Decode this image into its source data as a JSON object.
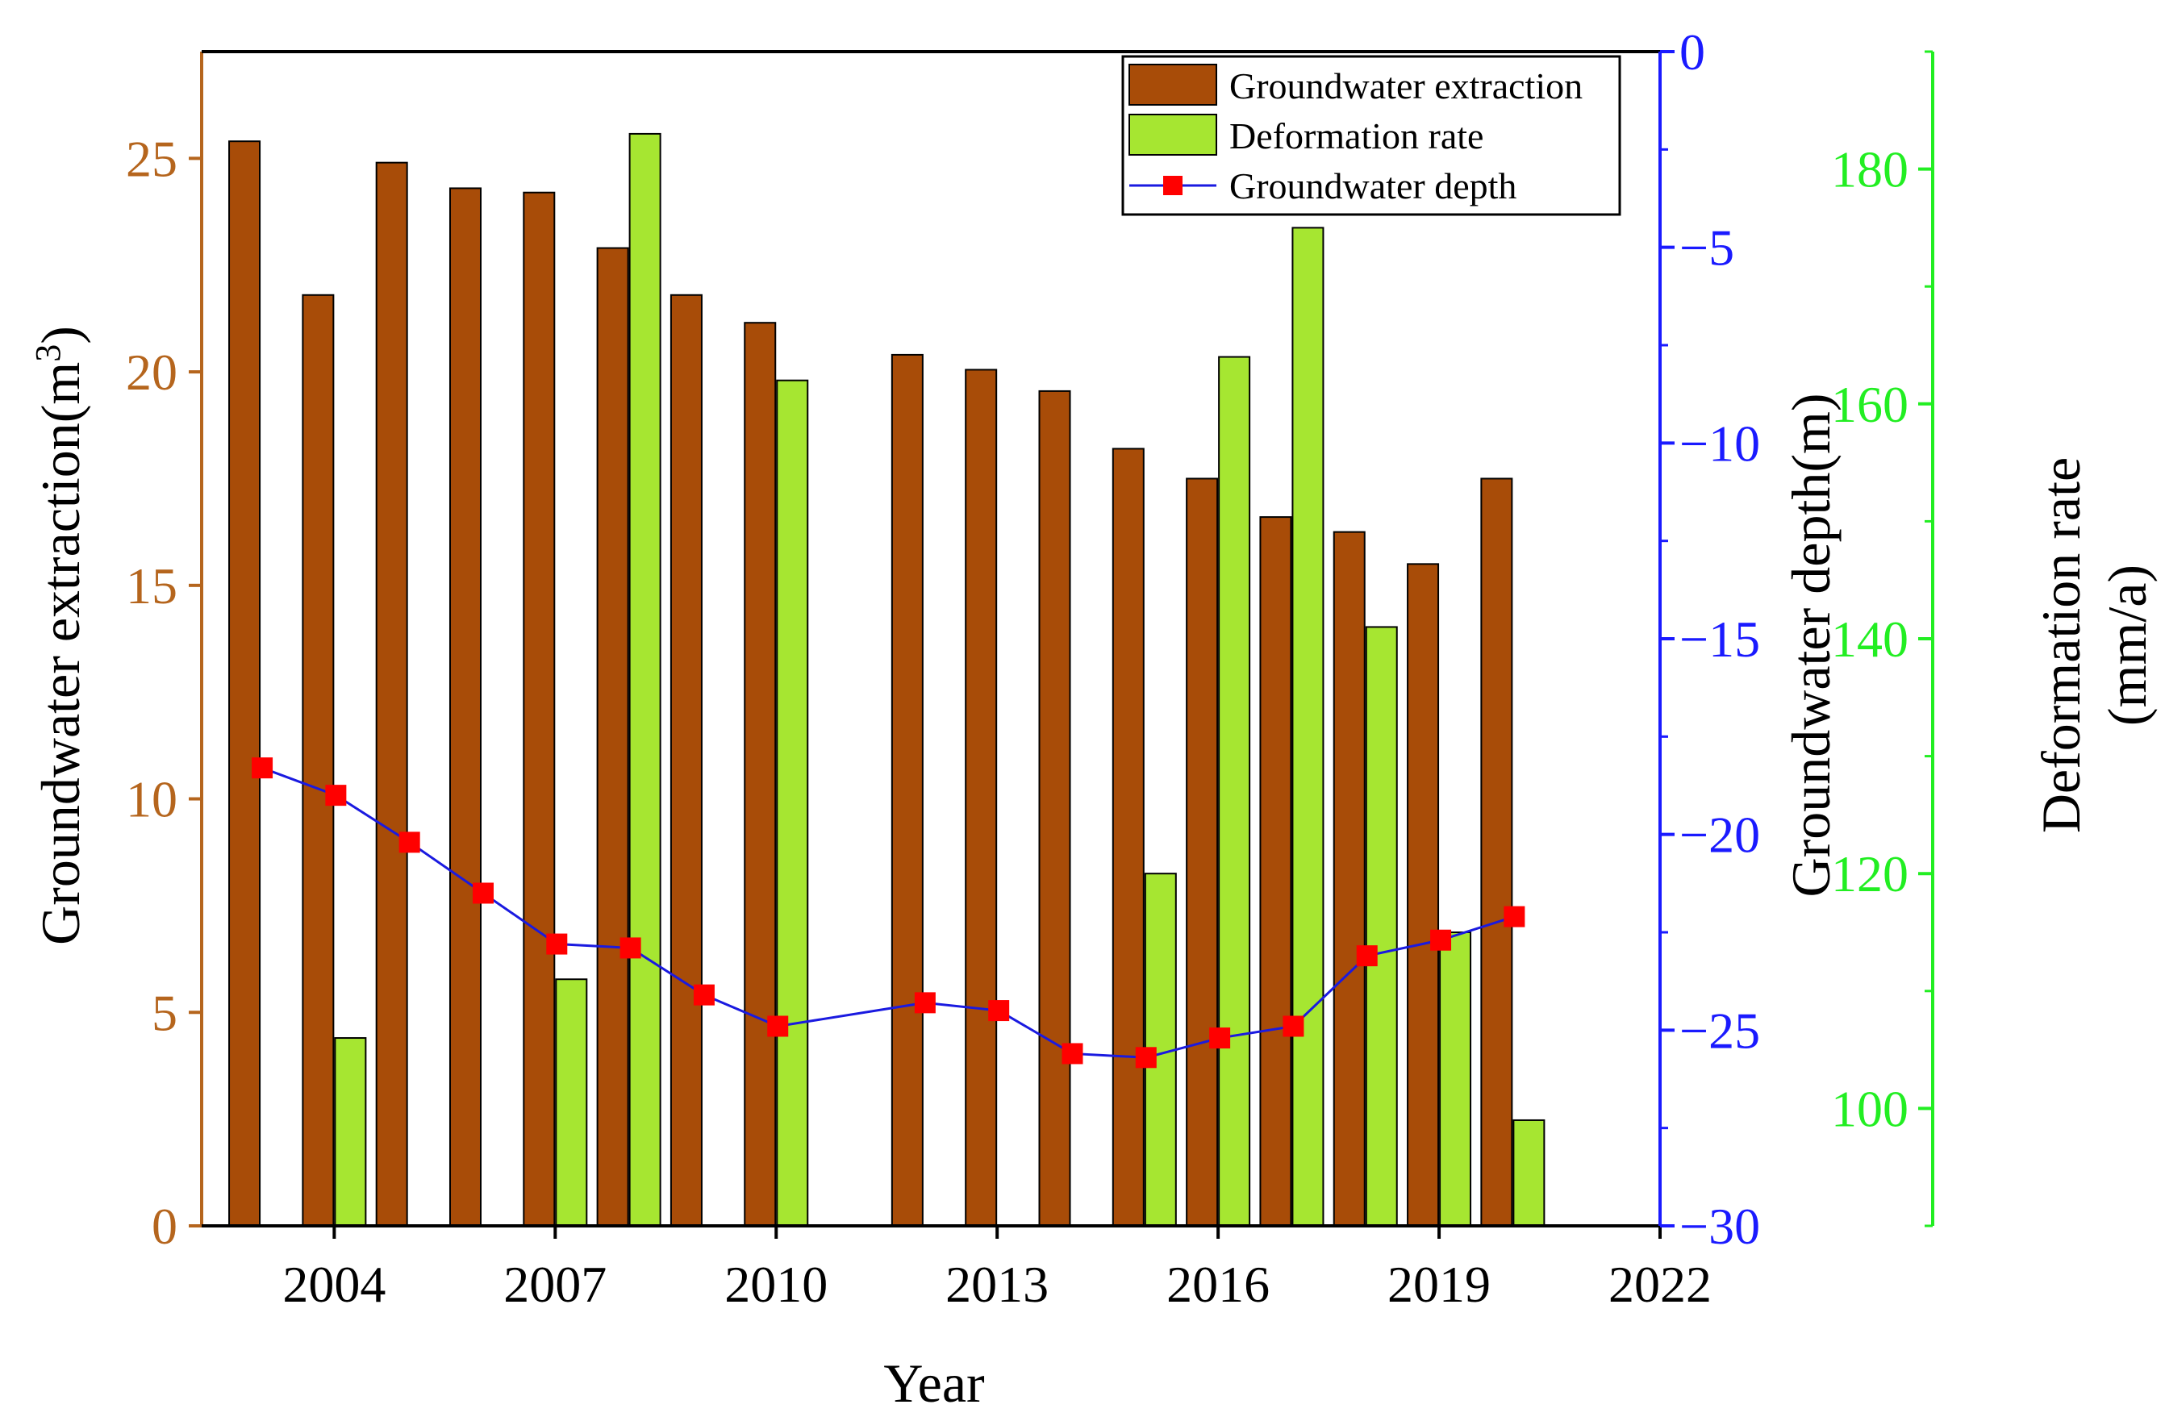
{
  "chart_data": {
    "type": "bar",
    "xlabel": "Year",
    "x_ticks": [
      "2004",
      "2007",
      "2010",
      "2013",
      "2016",
      "2019",
      "2022"
    ],
    "xlim": [
      2002.2,
      2022
    ],
    "axes": {
      "left": {
        "label": "Groundwater extraction(m",
        "label_superscript": "3",
        "label_suffix": ")",
        "ylim": [
          0,
          27.5
        ],
        "ticks": [
          "0",
          "5",
          "10",
          "15",
          "20",
          "25"
        ],
        "color": "#b5651d"
      },
      "right1": {
        "label": "Groundwater depth(m)",
        "ylim": [
          -30,
          0
        ],
        "ticks": [
          "0",
          "−5",
          "−10",
          "−15",
          "−20",
          "−25",
          "−30"
        ],
        "color": "#1a1aff"
      },
      "right2": {
        "label_line1": "Deformation rate",
        "label_line2": "(mm/a)",
        "ylim": [
          90,
          190
        ],
        "ticks": [
          "100",
          "120",
          "140",
          "160",
          "180"
        ],
        "color": "#22ee22"
      }
    },
    "legend": {
      "placement": "top-right",
      "items": [
        "Groundwater extraction",
        "Deformation rate",
        "Groundwater depth"
      ]
    },
    "colors": {
      "extraction": "#a84c08",
      "deformation": "#a6e631",
      "depth_line": "#1a1ae0",
      "depth_marker": "#ff0000"
    },
    "series": [
      {
        "name": "Groundwater extraction",
        "axis": "left",
        "points": [
          {
            "x": 2003,
            "y": 25.4
          },
          {
            "x": 2004,
            "y": 21.8
          },
          {
            "x": 2005,
            "y": 24.9
          },
          {
            "x": 2006,
            "y": 24.3
          },
          {
            "x": 2007,
            "y": 24.2
          },
          {
            "x": 2008,
            "y": 22.9
          },
          {
            "x": 2009,
            "y": 21.8
          },
          {
            "x": 2010,
            "y": 21.15
          },
          {
            "x": 2012,
            "y": 20.4
          },
          {
            "x": 2013,
            "y": 20.05
          },
          {
            "x": 2014,
            "y": 19.55
          },
          {
            "x": 2015,
            "y": 18.2
          },
          {
            "x": 2016,
            "y": 17.5
          },
          {
            "x": 2017,
            "y": 16.6
          },
          {
            "x": 2018,
            "y": 16.25
          },
          {
            "x": 2019,
            "y": 15.5
          },
          {
            "x": 2020,
            "y": 17.5
          }
        ]
      },
      {
        "name": "Deformation rate",
        "axis": "right2",
        "points": [
          {
            "x": 2004,
            "y": 106
          },
          {
            "x": 2007,
            "y": 111
          },
          {
            "x": 2008,
            "y": 183
          },
          {
            "x": 2010,
            "y": 162
          },
          {
            "x": 2015,
            "y": 120
          },
          {
            "x": 2016,
            "y": 164
          },
          {
            "x": 2017,
            "y": 175
          },
          {
            "x": 2018,
            "y": 141
          },
          {
            "x": 2019,
            "y": 115
          },
          {
            "x": 2020,
            "y": 99
          }
        ]
      },
      {
        "name": "Groundwater depth",
        "axis": "right1",
        "points": [
          {
            "x": 2003,
            "y": -18.3
          },
          {
            "x": 2004,
            "y": -19.0
          },
          {
            "x": 2005,
            "y": -20.2
          },
          {
            "x": 2006,
            "y": -21.5
          },
          {
            "x": 2007,
            "y": -22.8
          },
          {
            "x": 2008,
            "y": -22.9
          },
          {
            "x": 2009,
            "y": -24.1
          },
          {
            "x": 2010,
            "y": -24.9
          },
          {
            "x": 2012,
            "y": -24.3
          },
          {
            "x": 2013,
            "y": -24.5
          },
          {
            "x": 2014,
            "y": -25.6
          },
          {
            "x": 2015,
            "y": -25.7
          },
          {
            "x": 2016,
            "y": -25.2
          },
          {
            "x": 2017,
            "y": -24.9
          },
          {
            "x": 2018,
            "y": -23.1
          },
          {
            "x": 2019,
            "y": -22.7
          },
          {
            "x": 2020,
            "y": -22.1
          }
        ]
      }
    ]
  }
}
